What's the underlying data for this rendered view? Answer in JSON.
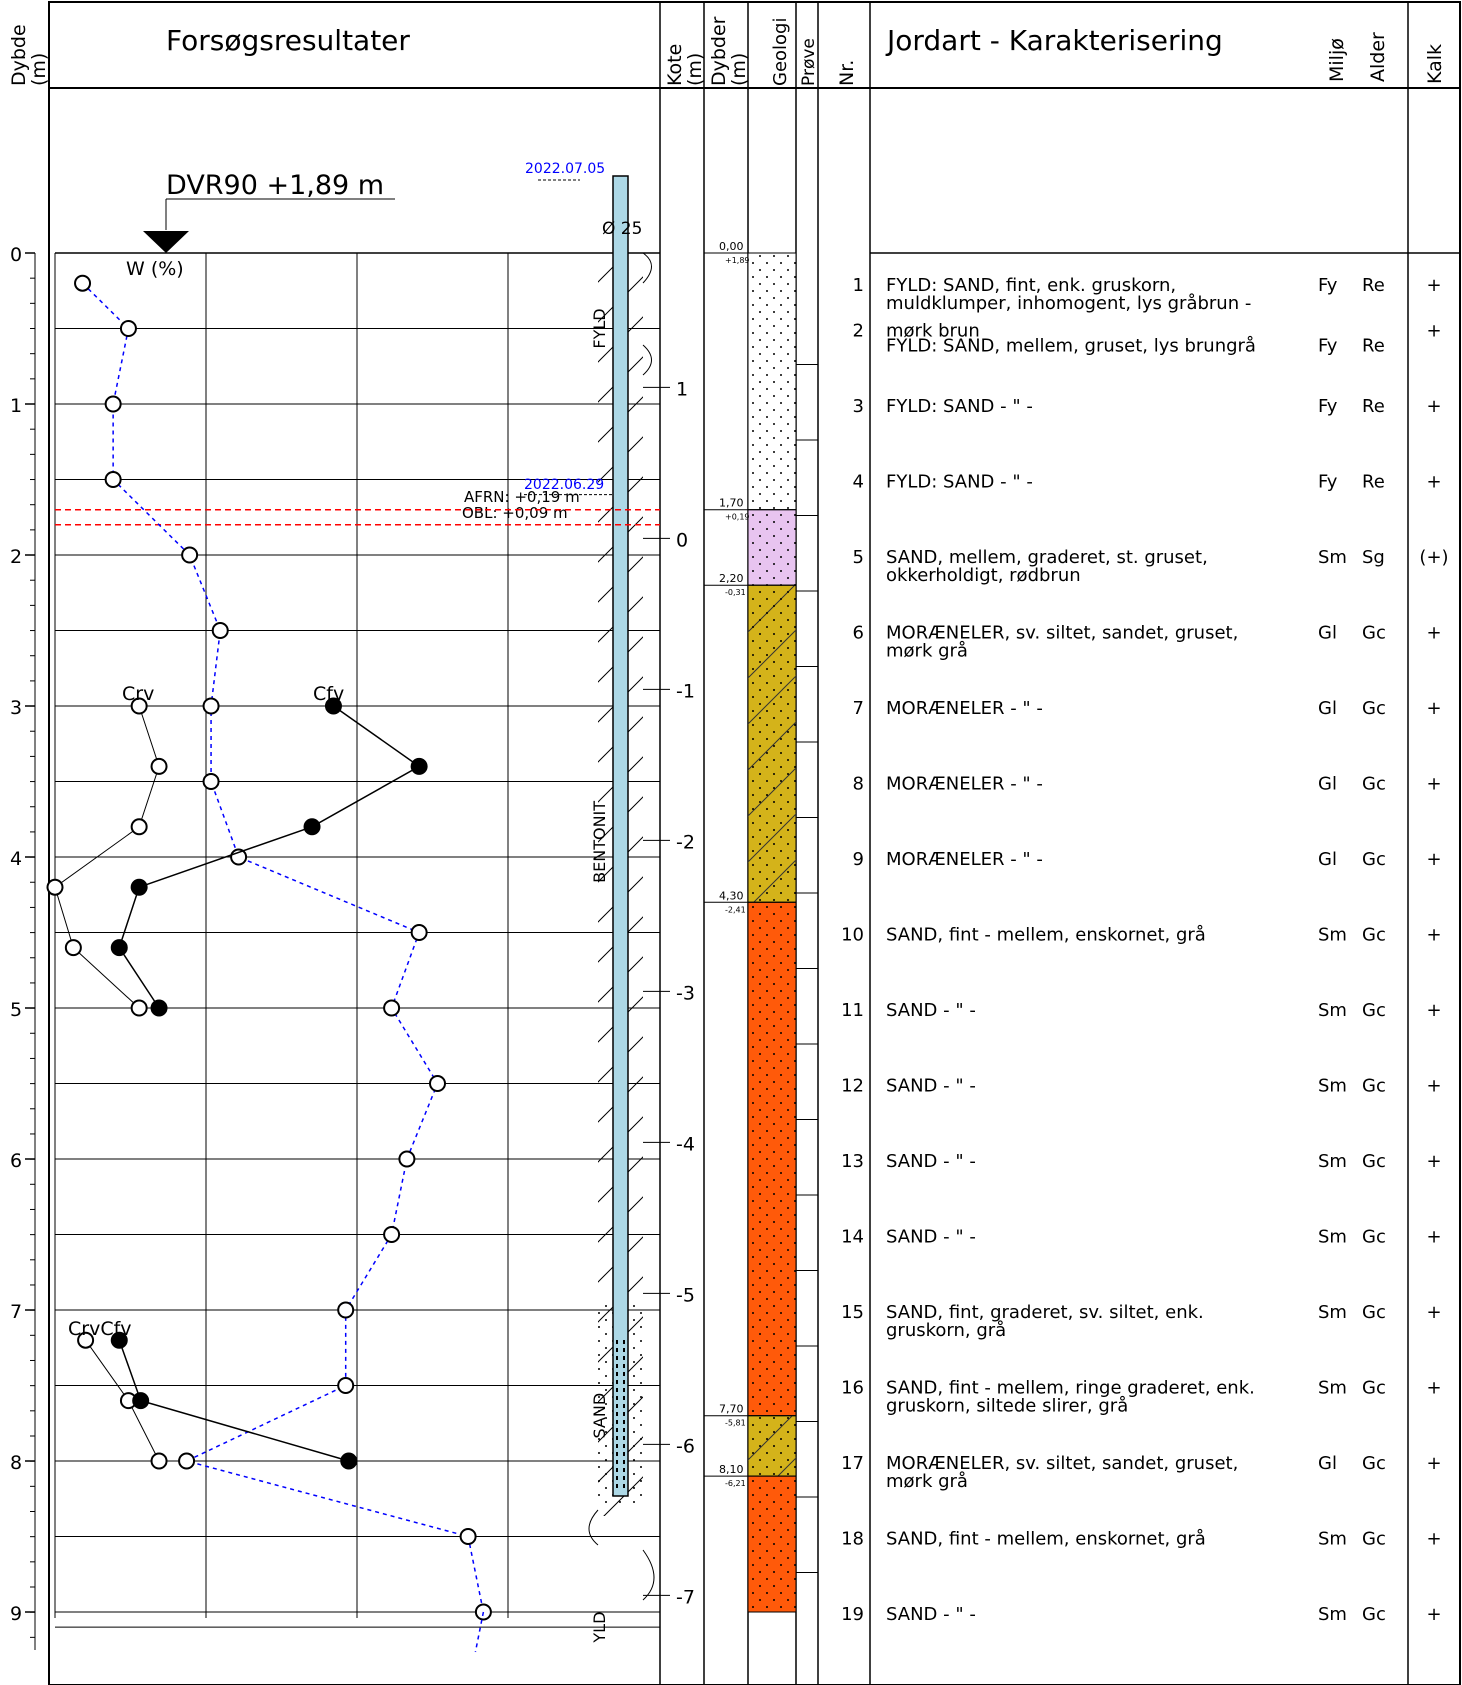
{
  "header": {
    "dybde_label_1": "Dybde",
    "dybde_label_2": "(m)",
    "results_title": "Forsøgsresultater",
    "kote_label_1": "Kote",
    "kote_label_2": "(m)",
    "dybder_label_1": "Dybder",
    "dybder_label_2": "(m)",
    "geologi_label": "Geologi",
    "prove_label": "Prøve",
    "nr_label": "Nr.",
    "jordart_title": "Jordart - Karakterisering",
    "miljo_label": "Miljø",
    "alder_label": "Alder",
    "kalk_label": "Kalk"
  },
  "datum": {
    "label": "DVR90 +1,89 m",
    "date_top": "2022.07.05",
    "date_water": "2022.06.29",
    "afrn": "AFRN: +0,19 m",
    "obl": "OBL: +0,09 m",
    "filter_label": "Ø 25",
    "w_label": "W (%)",
    "crv_label": "Crv",
    "cfv_label": "Cfv",
    "crvcfv_label": "CrvCfv"
  },
  "colors": {
    "frame": "#000000",
    "water_content_line": "#0000ff",
    "water_level_line": "#ff0000",
    "date_text": "#0000ff",
    "pipe": "#add8e6",
    "fill_fyld": "#ffffff",
    "fill_sand_pink": "#e8c4f0",
    "fill_moraene": "#d4b31a",
    "fill_sand_orange": "#ff5a0a"
  },
  "depth_ticks": [
    "0",
    "1",
    "2",
    "3",
    "4",
    "5",
    "6",
    "7",
    "8",
    "9"
  ],
  "kote_ticks": [
    {
      "label": "1",
      "value": 1
    },
    {
      "label": "0",
      "value": 0
    },
    {
      "label": "-1",
      "value": -1
    },
    {
      "label": "-2",
      "value": -2
    },
    {
      "label": "-3",
      "value": -3
    },
    {
      "label": "-4",
      "value": -4
    },
    {
      "label": "-5",
      "value": -5
    },
    {
      "label": "-6",
      "value": -6
    },
    {
      "label": "-7",
      "value": -7
    }
  ],
  "well_labels": [
    {
      "text": "FYLD",
      "depth": 0.5
    },
    {
      "text": "BENTONIT",
      "depth": 3.9
    },
    {
      "text": "SAND",
      "depth": 7.7
    },
    {
      "text": "YLD",
      "depth": 9.1
    }
  ],
  "layers": [
    {
      "top": 0.0,
      "bottom": 1.7,
      "top_depth": "0,00",
      "top_kote": "+1,89",
      "type": "fyld"
    },
    {
      "top": 1.7,
      "bottom": 2.2,
      "top_depth": "1,70",
      "top_kote": "+0,19",
      "type": "sand_pink"
    },
    {
      "top": 2.2,
      "bottom": 4.3,
      "top_depth": "2,20",
      "top_kote": "-0,31",
      "type": "moraene"
    },
    {
      "top": 4.3,
      "bottom": 7.7,
      "top_depth": "4,30",
      "top_kote": "-2,41",
      "type": "sand_orange"
    },
    {
      "top": 7.7,
      "bottom": 8.1,
      "top_depth": "7,70",
      "top_kote": "-5,81",
      "type": "moraene"
    },
    {
      "top": 8.1,
      "bottom": 9.0,
      "top_depth": "8,10",
      "top_kote": "-6,21",
      "type": "sand_orange"
    }
  ],
  "chart_data": {
    "type": "scatter",
    "y_axis": "Dybde (m)",
    "ylim": [
      0,
      9
    ],
    "series": [
      {
        "name": "W (%)",
        "style": "dashed-blue-open",
        "points": [
          [
            0.2,
            0.18
          ],
          [
            0.5,
            0.48
          ],
          [
            1.0,
            0.38
          ],
          [
            1.5,
            0.38
          ],
          [
            2.0,
            0.88
          ],
          [
            2.5,
            1.08
          ],
          [
            3.0,
            1.02
          ],
          [
            3.5,
            1.02
          ],
          [
            4.0,
            1.2
          ],
          [
            4.5,
            2.38
          ],
          [
            5.0,
            2.2
          ],
          [
            5.5,
            2.5
          ],
          [
            6.0,
            2.3
          ],
          [
            6.5,
            2.2
          ],
          [
            7.0,
            1.9
          ],
          [
            7.5,
            1.9
          ],
          [
            8.0,
            0.86
          ],
          [
            8.5,
            2.7
          ],
          [
            9.0,
            2.8
          ]
        ]
      },
      {
        "name": "Crv",
        "style": "thin-black-open",
        "points": [
          [
            3.0,
            0.55
          ],
          [
            3.4,
            0.68
          ],
          [
            3.8,
            0.55
          ],
          [
            4.2,
            0.0
          ],
          [
            4.6,
            0.12
          ],
          [
            5.0,
            0.55
          ]
        ]
      },
      {
        "name": "Cfv",
        "style": "black-filled",
        "points": [
          [
            3.0,
            1.82
          ],
          [
            3.4,
            2.38
          ],
          [
            3.8,
            1.68
          ],
          [
            4.2,
            0.55
          ],
          [
            4.6,
            0.42
          ],
          [
            5.0,
            0.68
          ]
        ]
      },
      {
        "name": "Crv (lower)",
        "style": "thin-black-open",
        "points": [
          [
            7.2,
            0.2
          ],
          [
            7.6,
            0.48
          ],
          [
            8.0,
            0.68
          ]
        ]
      },
      {
        "name": "Cfv (lower)",
        "style": "black-filled",
        "points": [
          [
            7.2,
            0.42
          ],
          [
            7.6,
            0.56
          ],
          [
            8.0,
            1.92
          ]
        ]
      }
    ],
    "water_levels": [
      {
        "label": "AFRN: +0,19 m",
        "depth": 1.7
      },
      {
        "label": "OBL: +0,09 m",
        "depth": 1.8
      }
    ]
  },
  "samples": [
    {
      "nr": "1",
      "depth": 0.2,
      "desc": [
        "FYLD: SAND, fint, enk. gruskorn,",
        "muldklumper, inhomogent, lys gråbrun -"
      ],
      "miljo": "Fy",
      "alder": "Re",
      "kalk": "+"
    },
    {
      "nr": "2",
      "depth": 0.5,
      "desc": [
        "mørk brun"
      ],
      "miljo": "",
      "alder": "",
      "kalk": "+"
    },
    {
      "nr": "",
      "depth": 0.6,
      "desc": [
        "FYLD: SAND, mellem, gruset, lys brungrå"
      ],
      "miljo": "Fy",
      "alder": "Re",
      "kalk": ""
    },
    {
      "nr": "3",
      "depth": 1.0,
      "desc": [
        "FYLD: SAND          - \" -"
      ],
      "miljo": "Fy",
      "alder": "Re",
      "kalk": "+"
    },
    {
      "nr": "4",
      "depth": 1.5,
      "desc": [
        "FYLD: SAND          - \" -"
      ],
      "miljo": "Fy",
      "alder": "Re",
      "kalk": "+"
    },
    {
      "nr": "5",
      "depth": 2.0,
      "desc": [
        "SAND, mellem, graderet, st. gruset,",
        "okkerholdigt, rødbrun"
      ],
      "miljo": "Sm",
      "alder": "Sg",
      "kalk": "(+)"
    },
    {
      "nr": "6",
      "depth": 2.5,
      "desc": [
        "MORÆNELER, sv. siltet, sandet, gruset,",
        "mørk grå"
      ],
      "miljo": "Gl",
      "alder": "Gc",
      "kalk": "+"
    },
    {
      "nr": "7",
      "depth": 3.0,
      "desc": [
        "MORÆNELER          - \" -"
      ],
      "miljo": "Gl",
      "alder": "Gc",
      "kalk": "+"
    },
    {
      "nr": "8",
      "depth": 3.5,
      "desc": [
        "MORÆNELER          - \" -"
      ],
      "miljo": "Gl",
      "alder": "Gc",
      "kalk": "+"
    },
    {
      "nr": "9",
      "depth": 4.0,
      "desc": [
        "MORÆNELER          - \" -"
      ],
      "miljo": "Gl",
      "alder": "Gc",
      "kalk": "+"
    },
    {
      "nr": "10",
      "depth": 4.5,
      "desc": [
        "SAND, fint - mellem, enskornet, grå"
      ],
      "miljo": "Sm",
      "alder": "Gc",
      "kalk": "+"
    },
    {
      "nr": "11",
      "depth": 5.0,
      "desc": [
        "SAND          - \" -"
      ],
      "miljo": "Sm",
      "alder": "Gc",
      "kalk": "+"
    },
    {
      "nr": "12",
      "depth": 5.5,
      "desc": [
        "SAND          - \" -"
      ],
      "miljo": "Sm",
      "alder": "Gc",
      "kalk": "+"
    },
    {
      "nr": "13",
      "depth": 6.0,
      "desc": [
        "SAND          - \" -"
      ],
      "miljo": "Sm",
      "alder": "Gc",
      "kalk": "+"
    },
    {
      "nr": "14",
      "depth": 6.5,
      "desc": [
        "SAND          - \" -"
      ],
      "miljo": "Sm",
      "alder": "Gc",
      "kalk": "+"
    },
    {
      "nr": "15",
      "depth": 7.0,
      "desc": [
        "SAND, fint, graderet, sv. siltet, enk.",
        "gruskorn, grå"
      ],
      "miljo": "Sm",
      "alder": "Gc",
      "kalk": "+"
    },
    {
      "nr": "16",
      "depth": 7.5,
      "desc": [
        "SAND, fint - mellem, ringe graderet, enk.",
        "gruskorn, siltede slirer, grå"
      ],
      "miljo": "Sm",
      "alder": "Gc",
      "kalk": "+"
    },
    {
      "nr": "17",
      "depth": 8.0,
      "desc": [
        "MORÆNELER, sv. siltet, sandet, gruset,",
        "mørk grå"
      ],
      "miljo": "Gl",
      "alder": "Gc",
      "kalk": "+"
    },
    {
      "nr": "18",
      "depth": 8.5,
      "desc": [
        "SAND, fint - mellem, enskornet, grå"
      ],
      "miljo": "Sm",
      "alder": "Gc",
      "kalk": "+"
    },
    {
      "nr": "19",
      "depth": 9.0,
      "desc": [
        "SAND          - \" -"
      ],
      "miljo": "Sm",
      "alder": "Gc",
      "kalk": "+"
    }
  ]
}
